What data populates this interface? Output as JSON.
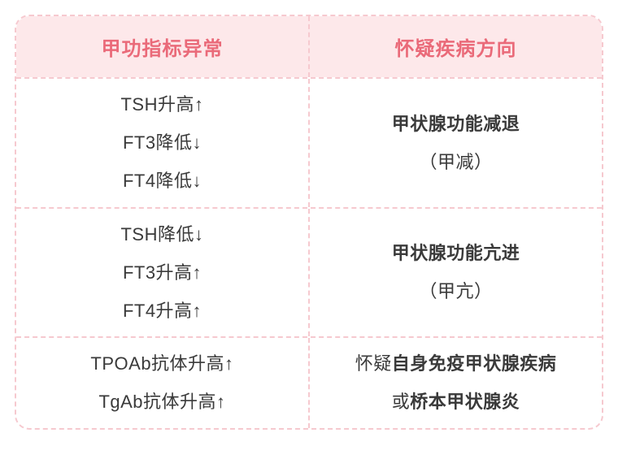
{
  "colors": {
    "border": "#f6c9cf",
    "header_bg": "#fde8ea",
    "header_fg": "#ea6a79",
    "text": "#3a3a3a"
  },
  "typography": {
    "header_fontsize_pt": 18,
    "body_fontsize_pt": 16,
    "font_family": "PingFang SC"
  },
  "table": {
    "type": "table",
    "columns": [
      "甲功指标异常",
      "怀疑疾病方向"
    ],
    "rows": [
      {
        "left": [
          {
            "text": "TSH升高↑",
            "bold": false
          },
          {
            "text": "FT3降低↓",
            "bold": false
          },
          {
            "text": "FT4降低↓",
            "bold": false
          }
        ],
        "right": [
          {
            "segments": [
              {
                "text": "甲状腺功能减退",
                "bold": true
              }
            ]
          },
          {
            "segments": [
              {
                "text": "（甲减）",
                "bold": false
              }
            ]
          }
        ]
      },
      {
        "left": [
          {
            "text": "TSH降低↓",
            "bold": false
          },
          {
            "text": "FT3升高↑",
            "bold": false
          },
          {
            "text": "FT4升高↑",
            "bold": false
          }
        ],
        "right": [
          {
            "segments": [
              {
                "text": "甲状腺功能亢进",
                "bold": true
              }
            ]
          },
          {
            "segments": [
              {
                "text": "（甲亢）",
                "bold": false
              }
            ]
          }
        ]
      },
      {
        "left": [
          {
            "text": "TPOAb抗体升高↑",
            "bold": false
          },
          {
            "text": "TgAb抗体升高↑",
            "bold": false
          }
        ],
        "right": [
          {
            "segments": [
              {
                "text": "怀疑",
                "bold": false
              },
              {
                "text": "自身免疫甲状腺疾病",
                "bold": true
              }
            ]
          },
          {
            "segments": [
              {
                "text": "或",
                "bold": false
              },
              {
                "text": "桥本甲状腺炎",
                "bold": true
              }
            ]
          }
        ]
      }
    ]
  }
}
